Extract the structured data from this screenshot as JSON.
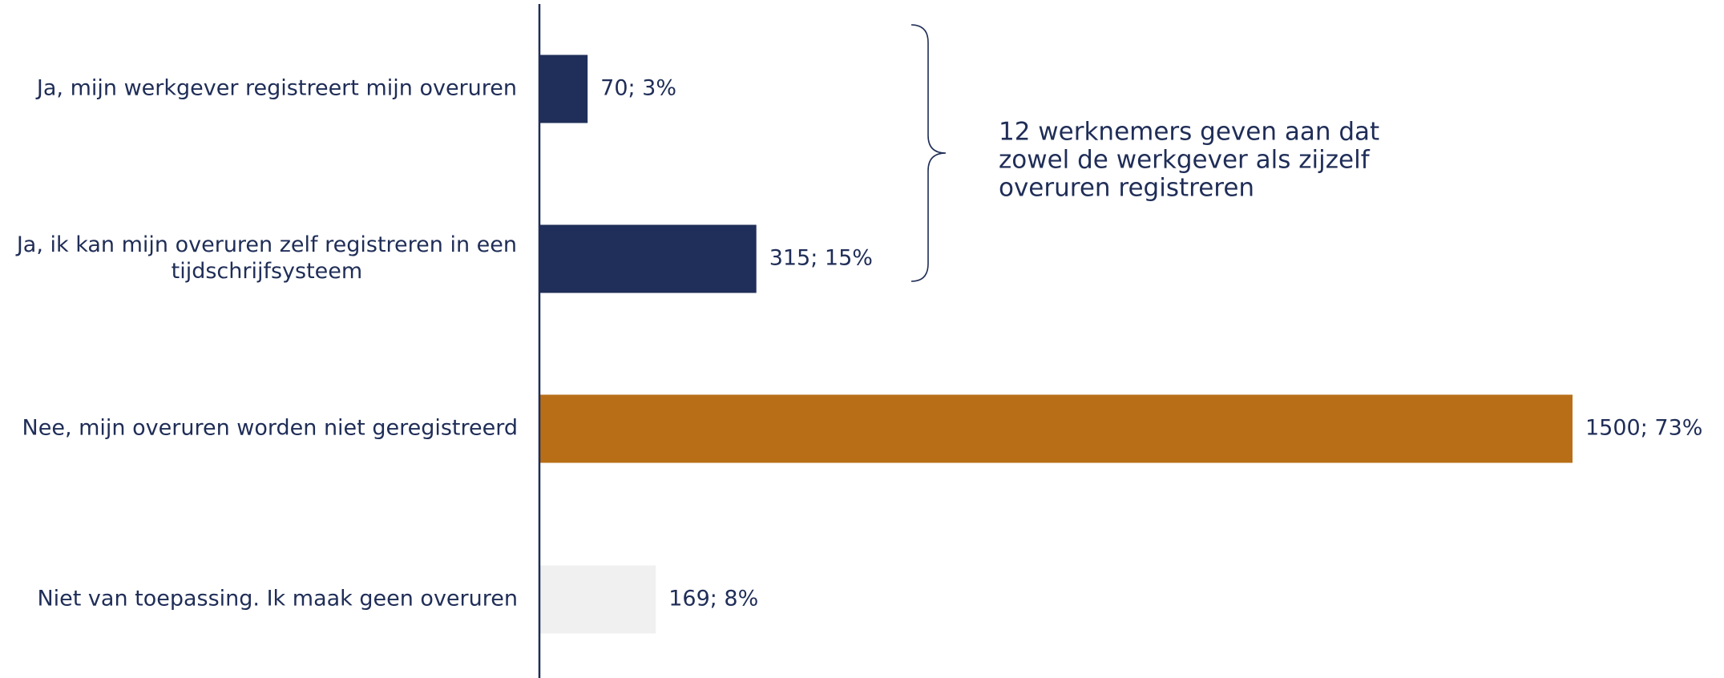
{
  "chart_data": {
    "type": "bar",
    "orientation": "horizontal",
    "categories": [
      [
        "Ja, mijn werkgever registreert mijn overuren"
      ],
      [
        "Ja, ik kan mijn overuren zelf registreren in een",
        "tijdschrijfsysteem"
      ],
      [
        "Nee, mijn overuren worden niet geregistreerd"
      ],
      [
        "Niet van toepassing. Ik maak geen overuren"
      ]
    ],
    "values": [
      70,
      315,
      1500,
      169
    ],
    "percentages": [
      3,
      15,
      73,
      8
    ],
    "data_labels": [
      "70; 3%",
      "315; 15%",
      "1500; 73%",
      "169; 8%"
    ],
    "bar_colors": [
      "#202f59",
      "#202f59",
      "#b86e17",
      "#f0f0f0"
    ],
    "xlim": [
      0,
      1500
    ],
    "grid": false,
    "legend": "none",
    "annotation": {
      "lines": [
        "12 werknemers geven aan dat",
        "zowel de werkgever als zijzelf",
        "overuren registreren"
      ],
      "brace_spans_categories": [
        0,
        1
      ]
    },
    "colors": {
      "text": "#1f2d57",
      "axis": "#1f2d57"
    }
  }
}
